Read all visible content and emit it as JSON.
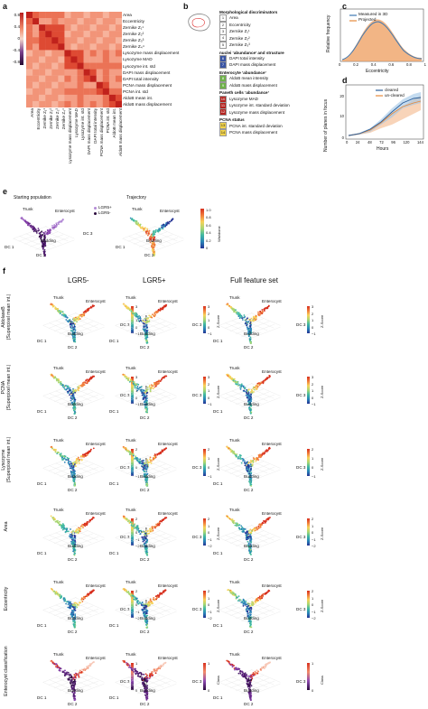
{
  "panels": {
    "a": "a",
    "b": "b",
    "c": "c",
    "d": "d",
    "e": "e",
    "f": "f"
  },
  "panel_a": {
    "colorbar_ticks": [
      "0.8",
      "0.4",
      "0",
      "-0.4",
      "-0.8"
    ],
    "features": [
      "Area",
      "Eccentricity",
      "Zernike Z₁¹",
      "Zernike Z₂²",
      "Zernike Z₃³",
      "Zernike Z₄⁴",
      "Lysozyme mass displacement",
      "Lysozyme MAD",
      "Lysozyme int. std",
      "DAPI mass displacement",
      "DAPI total intensity",
      "PCNA mass displacement",
      "PCNA int. std",
      "AldoB mean int.",
      "AldoB mass displacement"
    ],
    "colors": {
      "high": "#d7301f",
      "low": "#3b0f4f",
      "mid": "#f5a48a"
    }
  },
  "panel_b": {
    "sections": [
      {
        "title": "Morphological discriminators",
        "items": [
          {
            "n": "1",
            "label": "Area",
            "color": "#ffffff"
          },
          {
            "n": "2",
            "label": "Eccentricity",
            "color": "#ffffff"
          },
          {
            "n": "3",
            "label": "Zernike Z₁¹",
            "color": "#ffffff"
          },
          {
            "n": "4",
            "label": "Zernike Z₂²",
            "color": "#ffffff"
          },
          {
            "n": "5",
            "label": "Zernike Z₃³",
            "color": "#ffffff"
          }
        ]
      },
      {
        "title": "nuclei ‘abundance’ and structure",
        "items": [
          {
            "n": "6",
            "label": "DAPI total intensity",
            "color": "#3a55a4"
          },
          {
            "n": "7",
            "label": "DAPI mass displacement",
            "color": "#3a55a4"
          }
        ]
      },
      {
        "title": "Enterocyte ‘abundance’",
        "items": [
          {
            "n": "8",
            "label": "AldoB mean intensity",
            "color": "#6fb24a"
          },
          {
            "n": "9",
            "label": "AldoB mass displacement",
            "color": "#6fb24a"
          }
        ]
      },
      {
        "title": "Paneth cells ‘abundance’",
        "items": [
          {
            "n": "10",
            "label": "Lysozyme MAD",
            "color": "#b3221e"
          },
          {
            "n": "11",
            "label": "Lysozyme int. standard deviation",
            "color": "#b3221e"
          },
          {
            "n": "12",
            "label": "Lysozyme mass displacement",
            "color": "#b3221e"
          }
        ]
      },
      {
        "title": "PCNA status",
        "items": [
          {
            "n": "13",
            "label": "PCNA int. standard deviation",
            "color": "#f2d34a"
          },
          {
            "n": "14",
            "label": "PCNA mass displacement",
            "color": "#f2d34a"
          }
        ]
      }
    ]
  },
  "panel_c": {
    "ylabel": "Relative frequency",
    "xlabel": "Eccentricity",
    "legend": [
      "Measured in 3D",
      "Projected"
    ],
    "x_ticks": [
      "0",
      "0.2",
      "0.4",
      "0.6",
      "0.8",
      "1"
    ],
    "colors": {
      "measured": "#3e78b2",
      "projected": "#e58a3c"
    }
  },
  "panel_d": {
    "ylabel": "Number of planes in focus",
    "xlabel": "Hours",
    "legend": [
      "cleared",
      "un-cleared"
    ],
    "x_ticks": [
      "0",
      "24",
      "48",
      "72",
      "96",
      "120",
      "144"
    ],
    "y_ticks": [
      "20",
      "10",
      "0"
    ]
  },
  "panel_e": {
    "title_left": "Starting population",
    "title_right": "Trajectory",
    "legend": [
      "LGR5+",
      "LGR5-"
    ],
    "labels": {
      "trunk": "Trunk",
      "entero": "Enterocyst",
      "budding": "Budding",
      "dc1": "DC 1",
      "dc2": "DC 2",
      "dc3": "DC 3"
    },
    "cbar_label": "Wishbone",
    "cbar_ticks": [
      "1.0",
      "0.8",
      "0.6",
      "0.4",
      "0.2",
      "0"
    ]
  },
  "panel_f": {
    "col_headers": [
      "LGR5-",
      "LGR5+",
      "Full feature set"
    ],
    "rows": [
      {
        "label": "AldolaseB\n(Superpixel mean int.)",
        "cbar_label": "Z-Score",
        "ticks": [
          "3",
          "2",
          "1",
          "0",
          "−1"
        ]
      },
      {
        "label": "PCNA\n(Superpixel mean int.)",
        "cbar_label": "Z-Score",
        "ticks": [
          "3",
          "2",
          "1",
          "0",
          "−1"
        ]
      },
      {
        "label": "Lysozyme\n(Superpixel mean int.)",
        "cbar_label": "Z-Score",
        "ticks": [
          "2",
          "1",
          "0",
          "−1"
        ]
      },
      {
        "label": "Area",
        "cbar_label": "Z-Score",
        "ticks": [
          "2",
          "1",
          "0",
          "−1",
          "−2"
        ]
      },
      {
        "label": "Eccentricity",
        "cbar_label": "Z-Score",
        "ticks": [
          "2",
          "1",
          "0",
          "−1",
          "−2"
        ]
      },
      {
        "label": "Enterocyst classification",
        "cbar_label": "Class",
        "ticks": [
          "1",
          "0"
        ]
      }
    ],
    "labels": {
      "trunk": "Trunk",
      "entero": "Enterocyst",
      "budding": "Budding",
      "dc1": "DC 1",
      "dc2": "DC 2",
      "dc3": "DC 3"
    }
  }
}
